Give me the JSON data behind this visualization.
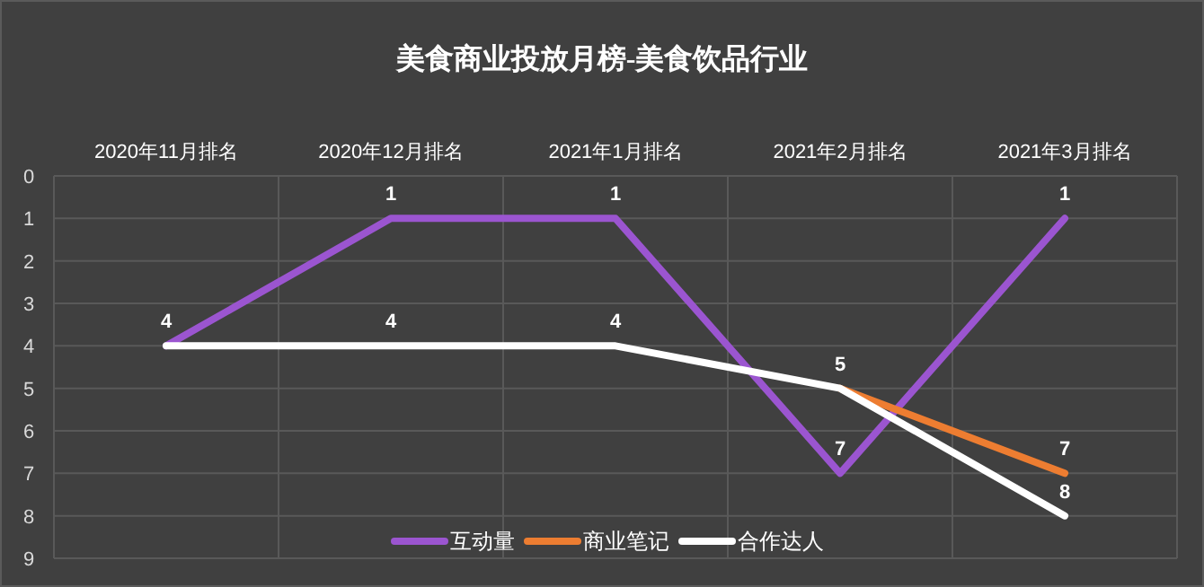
{
  "chart_data": {
    "type": "line",
    "title": "美食商业投放月榜-美食饮品行业",
    "categories": [
      "2020年11月排名",
      "2020年12月排名",
      "2021年1月排名",
      "2021年2月排名",
      "2021年3月排名"
    ],
    "series": [
      {
        "name": "互动量",
        "color": "#9b55d0",
        "values": [
          4,
          1,
          1,
          7,
          1
        ],
        "value_labels": [
          null,
          "1",
          "1",
          "7",
          "1"
        ]
      },
      {
        "name": "商业笔记",
        "color": "#ed7d31",
        "values": [
          null,
          null,
          null,
          5,
          7
        ],
        "value_labels": [
          null,
          null,
          null,
          null,
          "7"
        ]
      },
      {
        "name": "合作达人",
        "color": "#ffffff",
        "values": [
          4,
          4,
          4,
          5,
          8
        ],
        "value_labels": [
          "4",
          "4",
          "4",
          "5",
          "8"
        ]
      }
    ],
    "ylim": [
      9,
      0
    ],
    "yticks": [
      0,
      1,
      2,
      3,
      4,
      5,
      6,
      7,
      8,
      9
    ],
    "grid": true,
    "legend": "bottom",
    "marker": "none",
    "line_style": "solid"
  }
}
